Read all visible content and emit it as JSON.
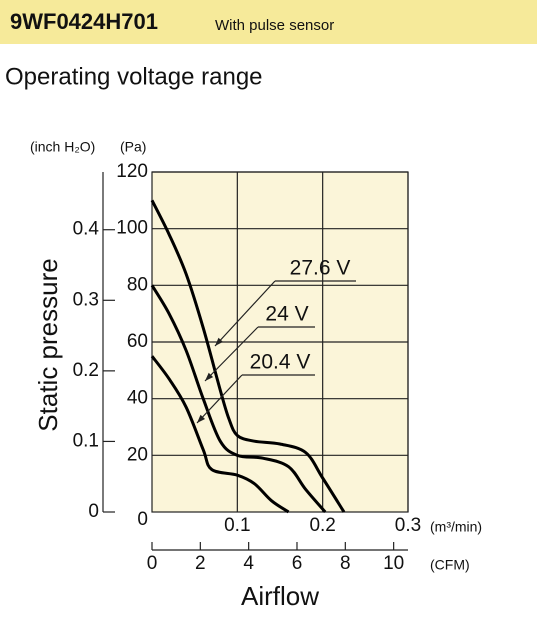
{
  "chart_data": {
    "type": "line",
    "header": "9WF0424H701",
    "header_note": "With pulse sensor",
    "title": "Operating voltage range",
    "ylabel": "Static pressure",
    "xlabel": "Airflow",
    "yunit": "(Pa)",
    "y2unit": "(inch H₂O)",
    "xunit": "(m³/min)",
    "x2unit": "(CFM)",
    "xlim": [
      0,
      0.3
    ],
    "xticks": [
      0.1,
      0.2,
      0.3
    ],
    "x2lim": [
      0,
      10.594
    ],
    "x2ticks": [
      0,
      2,
      4,
      6,
      8,
      10
    ],
    "ylim": [
      0,
      120
    ],
    "yticks": [
      0,
      20,
      40,
      60,
      80,
      100,
      120
    ],
    "y2lim": [
      0,
      0.4818
    ],
    "y2ticks": [
      0,
      0.1,
      0.2,
      0.3,
      0.4
    ],
    "grid": true,
    "series": [
      {
        "name": "27.6 V",
        "color": "#000000",
        "x": [
          0,
          0.02,
          0.04,
          0.06,
          0.08,
          0.09,
          0.1,
          0.12,
          0.15,
          0.18,
          0.2,
          0.225
        ],
        "values": [
          110,
          98,
          84,
          65,
          43,
          33,
          27,
          25,
          24,
          21,
          12,
          0
        ]
      },
      {
        "name": "24 V",
        "color": "#000000",
        "x": [
          0,
          0.02,
          0.04,
          0.06,
          0.08,
          0.1,
          0.13,
          0.16,
          0.18,
          0.203
        ],
        "values": [
          80,
          70,
          57,
          40,
          25,
          20,
          19,
          16,
          8,
          0
        ]
      },
      {
        "name": "20.4 V",
        "color": "#000000",
        "x": [
          0,
          0.02,
          0.04,
          0.06,
          0.07,
          0.1,
          0.12,
          0.14,
          0.16
        ],
        "values": [
          55,
          47,
          37,
          22,
          15,
          13,
          10,
          4,
          0
        ]
      }
    ]
  }
}
